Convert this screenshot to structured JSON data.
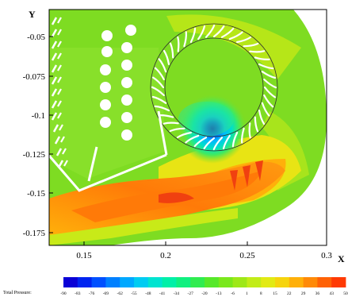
{
  "plot": {
    "x_axis_title": "X",
    "y_axis_title": "Y",
    "x_ticks": [
      "0.15",
      "0.2",
      "0.25",
      "0.3"
    ],
    "y_ticks": [
      "-0.05",
      "-0.075",
      "-0.1",
      "-0.125",
      "-0.15",
      "-0.175"
    ]
  },
  "colorbar": {
    "title": "Total Pressure:",
    "ticks": [
      "-90",
      "-83",
      "-76",
      "-69",
      "-62",
      "-55",
      "-48",
      "-41",
      "-34",
      "-27",
      "-20",
      "-13",
      "-6",
      "1",
      "8",
      "15",
      "22",
      "29",
      "36",
      "43",
      "50"
    ],
    "colors": [
      "#0a00d6",
      "#0024f0",
      "#0050ff",
      "#0080ff",
      "#00a8ff",
      "#00ccf2",
      "#00e4d0",
      "#00f0a8",
      "#10f080",
      "#30ec50",
      "#56e82a",
      "#7ae81c",
      "#9ee818",
      "#c2ec18",
      "#e2ea14",
      "#f6d40e",
      "#ffb00a",
      "#ff8a08",
      "#ff6206",
      "#ff3a04"
    ]
  },
  "colors": {
    "background_field": "#7edc22",
    "high_pressure": "#f04010",
    "low_pressure": "#1020e0"
  }
}
